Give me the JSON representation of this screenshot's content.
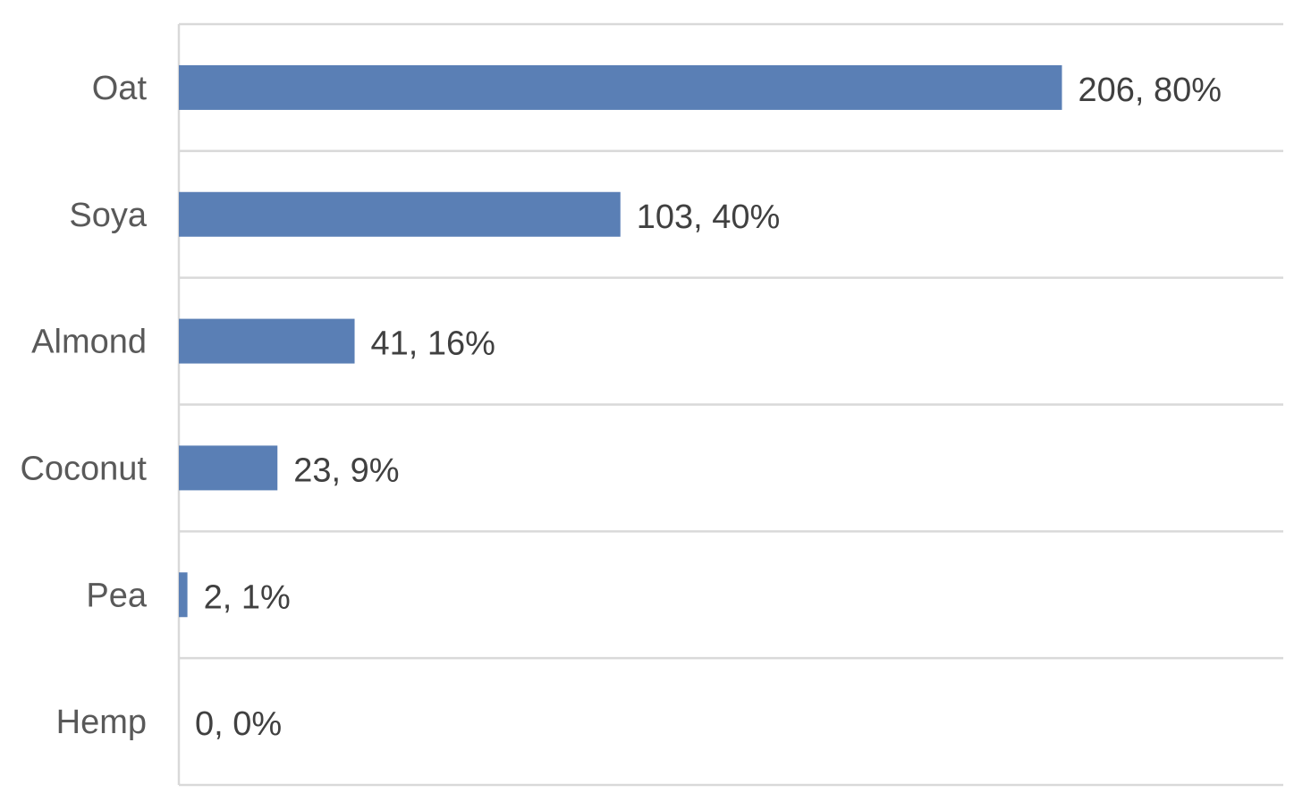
{
  "chart_data": {
    "type": "bar",
    "orientation": "horizontal",
    "categories": [
      "Oat",
      "Soya",
      "Almond",
      "Coconut",
      "Pea",
      "Hemp"
    ],
    "values": [
      206,
      103,
      41,
      23,
      2,
      0
    ],
    "percentages": [
      80,
      40,
      16,
      9,
      1,
      0
    ],
    "data_labels": [
      "206, 80%",
      "103, 40%",
      "41, 16%",
      "23, 9%",
      "2, 1%",
      "0, 0%"
    ],
    "title": "",
    "xlabel": "",
    "ylabel": "",
    "xlim": [
      0,
      257
    ],
    "grid": true,
    "legend": "none",
    "bar_color": "#5a7fb5"
  }
}
